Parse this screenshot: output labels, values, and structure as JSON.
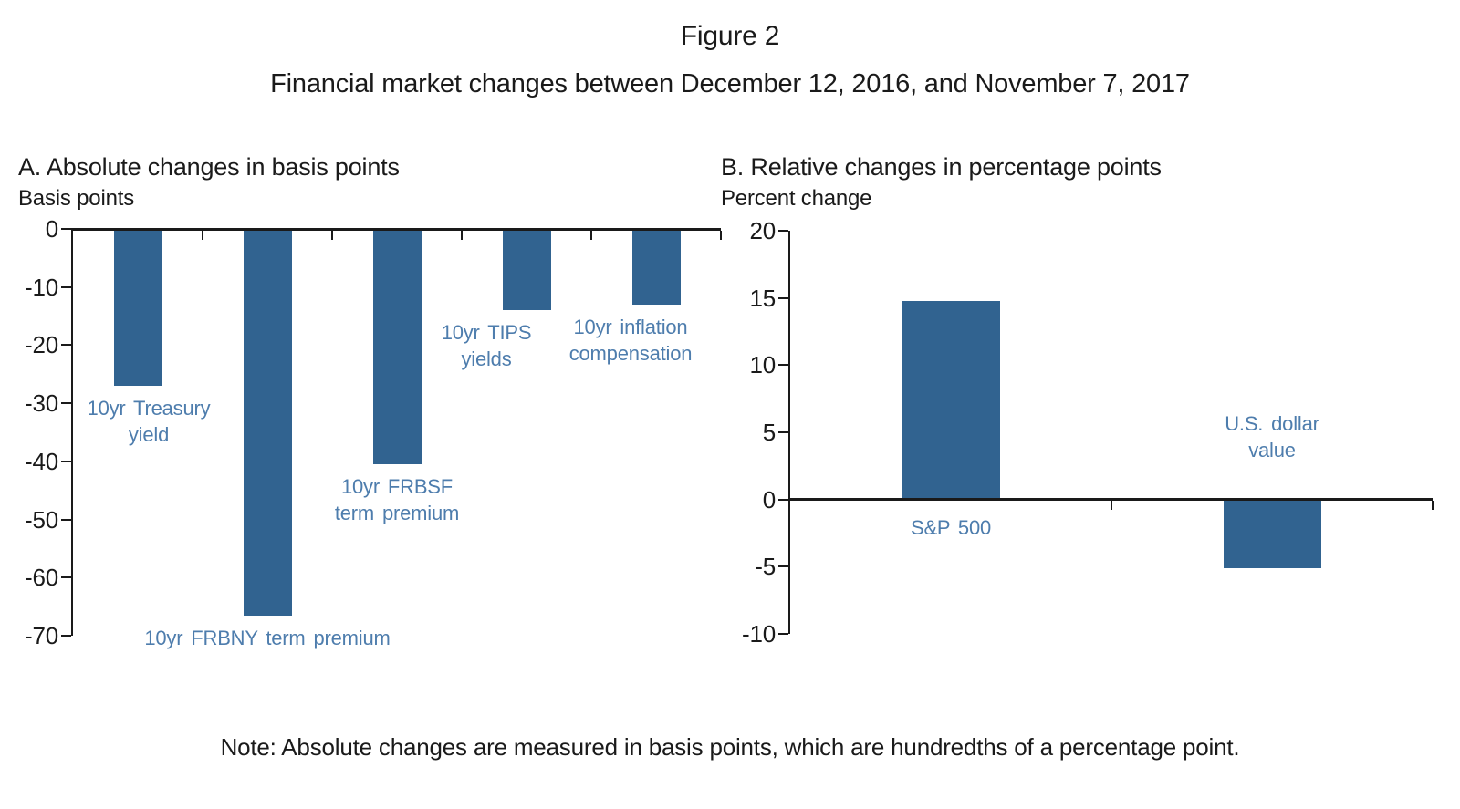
{
  "figure": {
    "title": "Figure 2",
    "subtitle": "Financial market changes between December 12, 2016, and November 7, 2017",
    "note": "Note: Absolute changes are measured in basis points, which are hundredths of a percentage point."
  },
  "colors": {
    "bar": "#316390",
    "bar_label": "#4E7DAD",
    "axis": "#1A1A1A",
    "background": "#FFFFFF"
  },
  "chart_data": [
    {
      "id": "panel-a",
      "type": "bar",
      "title": "A. Absolute changes in basis points",
      "ylabel": "Basis points",
      "categories": [
        "10yr Treasury yield",
        "10yr FRBNY term premium",
        "10yr FRBSF term premium",
        "10yr TIPS yields",
        "10yr inflation compensation"
      ],
      "category_label_lines": [
        [
          "10yr Treasury",
          "yield"
        ],
        [
          "10yr FRBNY term premium"
        ],
        [
          "10yr FRBSF",
          "term premium"
        ],
        [
          "10yr TIPS",
          "yields"
        ],
        [
          "10yr inflation",
          "compensation"
        ]
      ],
      "values": [
        -27,
        -66.5,
        -40.5,
        -14,
        -13
      ],
      "ylim": [
        -70,
        0
      ],
      "yticks": [
        0,
        -10,
        -20,
        -30,
        -40,
        -50,
        -60,
        -70
      ],
      "grid": false,
      "legend": "none"
    },
    {
      "id": "panel-b",
      "type": "bar",
      "title": "B. Relative changes in percentage points",
      "ylabel": "Percent change",
      "categories": [
        "S&P 500",
        "U.S. dollar value"
      ],
      "category_label_lines": [
        [
          "S&P 500"
        ],
        [
          "U.S. dollar",
          "value"
        ]
      ],
      "values": [
        14.8,
        -5.1
      ],
      "ylim": [
        -10,
        20
      ],
      "yticks": [
        20,
        15,
        10,
        5,
        0,
        -5,
        -10
      ],
      "grid": false,
      "legend": "none"
    }
  ]
}
